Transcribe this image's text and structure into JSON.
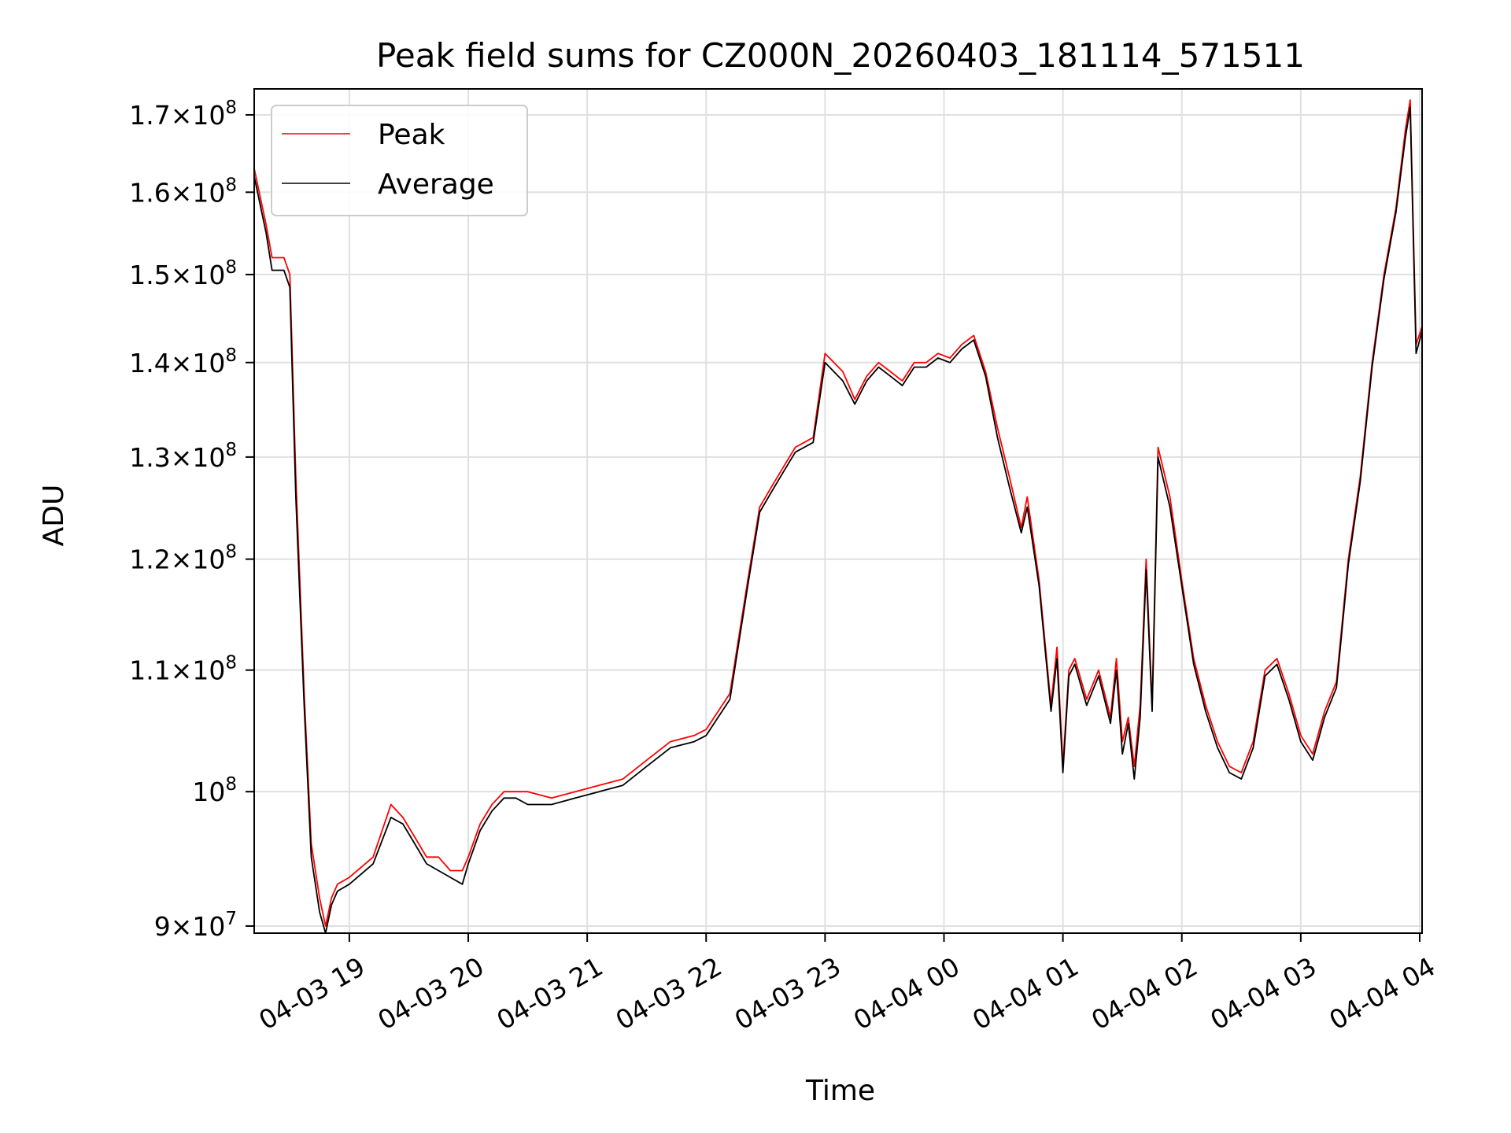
{
  "chart_data": {
    "type": "line",
    "title": "Peak field sums for CZ000N_20260403_181114_571511",
    "xlabel": "Time",
    "ylabel": "ADU",
    "yscale": "log",
    "ylim": [
      89500000,
      173500000
    ],
    "xlim_hours": [
      18.2,
      28.02
    ],
    "grid": true,
    "legend_position": "top-left",
    "x_ticks": [
      {
        "label": "04-03 19",
        "value": 19
      },
      {
        "label": "04-03 20",
        "value": 20
      },
      {
        "label": "04-03 21",
        "value": 21
      },
      {
        "label": "04-03 22",
        "value": 22
      },
      {
        "label": "04-03 23",
        "value": 23
      },
      {
        "label": "04-04 00",
        "value": 24
      },
      {
        "label": "04-04 01",
        "value": 25
      },
      {
        "label": "04-04 02",
        "value": 26
      },
      {
        "label": "04-04 03",
        "value": 27
      },
      {
        "label": "04-04 04",
        "value": 28
      }
    ],
    "y_ticks": [
      {
        "value": 90000000,
        "mantissa": "9",
        "base": "10",
        "exp": "7"
      },
      {
        "value": 100000000,
        "mantissa": "",
        "base": "10",
        "exp": "8"
      },
      {
        "value": 110000000,
        "mantissa": "1.1",
        "base": "10",
        "exp": "8"
      },
      {
        "value": 120000000,
        "mantissa": "1.2",
        "base": "10",
        "exp": "8"
      },
      {
        "value": 130000000,
        "mantissa": "1.3",
        "base": "10",
        "exp": "8"
      },
      {
        "value": 140000000,
        "mantissa": "1.4",
        "base": "10",
        "exp": "8"
      },
      {
        "value": 150000000,
        "mantissa": "1.5",
        "base": "10",
        "exp": "8"
      },
      {
        "value": 160000000,
        "mantissa": "1.6",
        "base": "10",
        "exp": "8"
      },
      {
        "value": 170000000,
        "mantissa": "1.7",
        "base": "10",
        "exp": "8"
      }
    ],
    "series": [
      {
        "name": "Peak",
        "color": "#ff0000",
        "x_hours": [
          18.2,
          18.3,
          18.35,
          18.45,
          18.5,
          18.55,
          18.62,
          18.68,
          18.75,
          18.8,
          18.85,
          18.9,
          19.0,
          19.2,
          19.35,
          19.45,
          19.55,
          19.65,
          19.75,
          19.85,
          19.95,
          20.0,
          20.1,
          20.2,
          20.3,
          20.4,
          20.5,
          20.7,
          20.9,
          21.1,
          21.3,
          21.5,
          21.7,
          21.9,
          22.0,
          22.2,
          22.35,
          22.45,
          22.55,
          22.65,
          22.75,
          22.9,
          23.0,
          23.15,
          23.25,
          23.35,
          23.45,
          23.55,
          23.65,
          23.75,
          23.85,
          23.95,
          24.05,
          24.15,
          24.25,
          24.35,
          24.45,
          24.55,
          24.65,
          24.7,
          24.8,
          24.9,
          24.95,
          25.0,
          25.05,
          25.1,
          25.2,
          25.3,
          25.4,
          25.45,
          25.5,
          25.55,
          25.6,
          25.65,
          25.7,
          25.75,
          25.8,
          25.9,
          26.0,
          26.1,
          26.2,
          26.3,
          26.4,
          26.5,
          26.6,
          26.7,
          26.8,
          26.9,
          27.0,
          27.1,
          27.2,
          27.3,
          27.4,
          27.5,
          27.6,
          27.7,
          27.8,
          27.88,
          27.92,
          27.97,
          28.02
        ],
        "values": [
          163000000,
          156000000,
          152000000,
          152000000,
          150000000,
          128000000,
          108000000,
          96000000,
          92000000,
          90000000,
          92000000,
          93000000,
          93500000,
          95000000,
          99000000,
          98000000,
          96500000,
          95000000,
          95000000,
          94000000,
          94000000,
          95000000,
          97500000,
          99000000,
          100000000,
          100000000,
          100000000,
          99500000,
          100000000,
          100500000,
          101000000,
          102500000,
          104000000,
          104500000,
          105000000,
          108000000,
          118000000,
          125000000,
          127000000,
          129000000,
          131000000,
          132000000,
          141000000,
          139000000,
          136000000,
          138500000,
          140000000,
          139000000,
          138000000,
          140000000,
          140000000,
          141000000,
          140500000,
          142000000,
          143000000,
          139000000,
          133000000,
          128000000,
          123000000,
          126000000,
          118000000,
          107000000,
          112000000,
          102000000,
          110000000,
          111000000,
          107500000,
          110000000,
          106000000,
          111000000,
          104000000,
          106000000,
          102000000,
          107000000,
          120000000,
          107000000,
          131000000,
          126000000,
          118000000,
          111000000,
          107000000,
          104000000,
          102000000,
          101500000,
          104000000,
          110000000,
          111000000,
          108000000,
          104500000,
          103000000,
          106500000,
          109000000,
          120000000,
          128000000,
          140000000,
          150000000,
          158000000,
          168000000,
          172000000,
          142000000,
          144000000
        ]
      },
      {
        "name": "Average",
        "color": "#000000",
        "x_hours": [
          18.2,
          18.3,
          18.35,
          18.45,
          18.5,
          18.55,
          18.62,
          18.68,
          18.75,
          18.8,
          18.85,
          18.9,
          19.0,
          19.2,
          19.35,
          19.45,
          19.55,
          19.65,
          19.75,
          19.85,
          19.95,
          20.0,
          20.1,
          20.2,
          20.3,
          20.4,
          20.5,
          20.7,
          20.9,
          21.1,
          21.3,
          21.5,
          21.7,
          21.9,
          22.0,
          22.2,
          22.35,
          22.45,
          22.55,
          22.65,
          22.75,
          22.9,
          23.0,
          23.15,
          23.25,
          23.35,
          23.45,
          23.55,
          23.65,
          23.75,
          23.85,
          23.95,
          24.05,
          24.15,
          24.25,
          24.35,
          24.45,
          24.55,
          24.65,
          24.7,
          24.8,
          24.9,
          24.95,
          25.0,
          25.05,
          25.1,
          25.2,
          25.3,
          25.4,
          25.45,
          25.5,
          25.55,
          25.6,
          25.65,
          25.7,
          25.75,
          25.8,
          25.9,
          26.0,
          26.1,
          26.2,
          26.3,
          26.4,
          26.5,
          26.6,
          26.7,
          26.8,
          26.9,
          27.0,
          27.1,
          27.2,
          27.3,
          27.4,
          27.5,
          27.6,
          27.7,
          27.8,
          27.88,
          27.92,
          27.97,
          28.02
        ],
        "values": [
          162000000,
          155000000,
          150500000,
          150500000,
          148500000,
          126000000,
          107000000,
          95000000,
          91000000,
          89500000,
          91500000,
          92500000,
          93000000,
          94500000,
          98000000,
          97500000,
          96000000,
          94500000,
          94000000,
          93500000,
          93000000,
          94500000,
          97000000,
          98500000,
          99500000,
          99500000,
          99000000,
          99000000,
          99500000,
          100000000,
          100500000,
          102000000,
          103500000,
          104000000,
          104500000,
          107500000,
          117500000,
          124500000,
          126500000,
          128500000,
          130500000,
          131500000,
          140000000,
          138000000,
          135500000,
          138000000,
          139500000,
          138500000,
          137500000,
          139500000,
          139500000,
          140500000,
          140000000,
          141500000,
          142500000,
          138500000,
          132000000,
          127000000,
          122500000,
          125000000,
          117500000,
          106500000,
          111000000,
          101500000,
          109500000,
          110500000,
          107000000,
          109500000,
          105500000,
          110000000,
          103000000,
          105500000,
          101000000,
          106000000,
          119000000,
          106500000,
          130000000,
          125000000,
          117500000,
          110500000,
          106500000,
          103500000,
          101500000,
          101000000,
          103500000,
          109500000,
          110500000,
          107500000,
          104000000,
          102500000,
          106000000,
          108500000,
          119500000,
          127500000,
          139500000,
          149500000,
          157500000,
          167000000,
          171000000,
          141000000,
          143500000
        ]
      }
    ],
    "legend": [
      {
        "label": "Peak",
        "color": "#ff0000"
      },
      {
        "label": "Average",
        "color": "#000000"
      }
    ]
  }
}
